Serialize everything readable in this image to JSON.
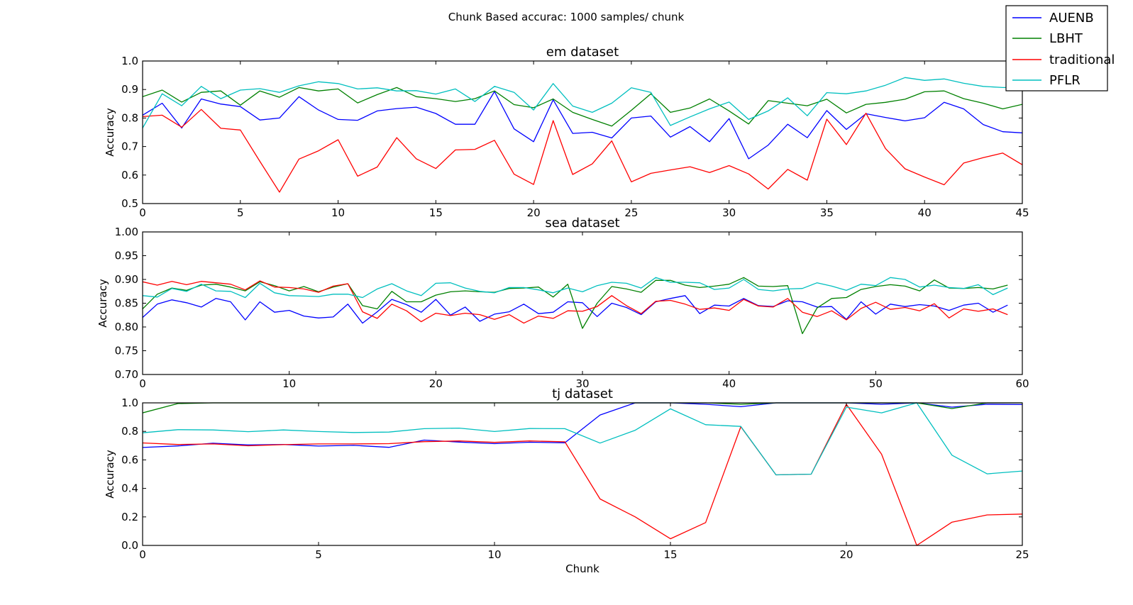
{
  "figure": {
    "suptitle": "Chunk Based accurac: 1000 samples/ chunk",
    "legend": {
      "placement": "top-right",
      "entries": [
        "AUENB",
        "LBHT",
        "traditional",
        "PFLR"
      ]
    },
    "colors": {
      "AUENB": "#0000ff",
      "LBHT": "#008000",
      "traditional": "#ff0000",
      "PFLR": "#00bfbf"
    }
  },
  "chart_data": [
    {
      "type": "line",
      "title": "em dataset",
      "xlabel": "",
      "ylabel": "Accuracy",
      "xlim": [
        0,
        45
      ],
      "ylim": [
        0.5,
        1.0
      ],
      "xticks": [
        "0",
        "5",
        "10",
        "15",
        "20",
        "25",
        "30",
        "35",
        "40",
        "45"
      ],
      "yticks": [
        "0.5",
        "0.6",
        "0.7",
        "0.8",
        "0.9",
        "1.0"
      ],
      "x": [
        0,
        1,
        2,
        3,
        4,
        5,
        6,
        7,
        8,
        9,
        10,
        11,
        12,
        13,
        14,
        15,
        16,
        17,
        18,
        19,
        20,
        21,
        22,
        23,
        24,
        25,
        26,
        27,
        28,
        29,
        30,
        31,
        32,
        33,
        34,
        35,
        36,
        37,
        38,
        39,
        40,
        41,
        42,
        43,
        44,
        45
      ],
      "series": [
        {
          "name": "AUENB",
          "color": "#0000ff",
          "values": [
            0.81,
            0.852,
            0.765,
            0.867,
            0.849,
            0.84,
            0.793,
            0.8,
            0.875,
            0.828,
            0.795,
            0.792,
            0.825,
            0.833,
            0.838,
            0.816,
            0.778,
            0.778,
            0.893,
            0.762,
            0.717,
            0.864,
            0.746,
            0.75,
            0.73,
            0.8,
            0.807,
            0.733,
            0.77,
            0.717,
            0.798,
            0.657,
            0.705,
            0.778,
            0.731,
            0.826,
            0.76,
            0.815,
            0.802,
            0.79,
            0.801,
            0.855,
            0.832,
            0.777,
            0.752,
            0.748
          ]
        },
        {
          "name": "LBHT",
          "color": "#008000",
          "values": [
            0.875,
            0.898,
            0.856,
            0.89,
            0.895,
            0.845,
            0.895,
            0.873,
            0.907,
            0.895,
            0.902,
            0.853,
            0.882,
            0.907,
            0.875,
            0.868,
            0.858,
            0.868,
            0.895,
            0.847,
            0.836,
            0.867,
            0.82,
            0.795,
            0.772,
            0.827,
            0.885,
            0.82,
            0.835,
            0.867,
            0.825,
            0.779,
            0.861,
            0.852,
            0.843,
            0.866,
            0.818,
            0.848,
            0.855,
            0.866,
            0.892,
            0.895,
            0.868,
            0.852,
            0.832,
            0.848
          ]
        },
        {
          "name": "traditional",
          "color": "#ff0000",
          "values": [
            0.805,
            0.81,
            0.768,
            0.83,
            0.764,
            0.758,
            0.648,
            0.54,
            0.656,
            0.685,
            0.724,
            0.596,
            0.628,
            0.731,
            0.657,
            0.623,
            0.688,
            0.69,
            0.722,
            0.603,
            0.567,
            0.791,
            0.602,
            0.639,
            0.72,
            0.576,
            0.606,
            0.618,
            0.629,
            0.609,
            0.633,
            0.604,
            0.551,
            0.62,
            0.582,
            0.796,
            0.707,
            0.817,
            0.693,
            0.622,
            0.593,
            0.566,
            0.642,
            0.661,
            0.677,
            0.636
          ]
        },
        {
          "name": "PFLR",
          "color": "#00bfbf",
          "values": [
            0.765,
            0.885,
            0.843,
            0.911,
            0.868,
            0.898,
            0.903,
            0.89,
            0.913,
            0.927,
            0.921,
            0.902,
            0.906,
            0.895,
            0.896,
            0.884,
            0.902,
            0.858,
            0.911,
            0.89,
            0.828,
            0.921,
            0.842,
            0.82,
            0.852,
            0.906,
            0.89,
            0.774,
            0.804,
            0.832,
            0.856,
            0.795,
            0.825,
            0.871,
            0.808,
            0.889,
            0.885,
            0.895,
            0.915,
            0.942,
            0.932,
            0.937,
            0.922,
            0.911,
            0.907,
            0.907
          ]
        }
      ]
    },
    {
      "type": "line",
      "title": "sea dataset",
      "xlabel": "",
      "ylabel": "Accuracy",
      "xlim": [
        0,
        60
      ],
      "ylim": [
        0.7,
        1.0
      ],
      "xticks": [
        "0",
        "10",
        "20",
        "30",
        "40",
        "50",
        "60"
      ],
      "yticks": [
        "0.70",
        "0.75",
        "0.80",
        "0.85",
        "0.90",
        "0.95",
        "1.00"
      ],
      "x": [
        0,
        1,
        2,
        3,
        4,
        5,
        6,
        7,
        8,
        9,
        10,
        11,
        12,
        13,
        14,
        15,
        16,
        17,
        18,
        19,
        20,
        21,
        22,
        23,
        24,
        25,
        26,
        27,
        28,
        29,
        30,
        31,
        32,
        33,
        34,
        35,
        36,
        37,
        38,
        39,
        40,
        41,
        42,
        43,
        44,
        45,
        46,
        47,
        48,
        49,
        50,
        51,
        52,
        53,
        54,
        55,
        56,
        57,
        58,
        59
      ],
      "series": [
        {
          "name": "AUENB",
          "color": "#0000ff",
          "values": [
            0.82,
            0.848,
            0.857,
            0.851,
            0.842,
            0.86,
            0.853,
            0.815,
            0.853,
            0.831,
            0.835,
            0.823,
            0.819,
            0.821,
            0.848,
            0.808,
            0.832,
            0.858,
            0.847,
            0.831,
            0.858,
            0.825,
            0.842,
            0.812,
            0.827,
            0.832,
            0.848,
            0.828,
            0.831,
            0.853,
            0.851,
            0.822,
            0.85,
            0.841,
            0.826,
            0.853,
            0.86,
            0.866,
            0.828,
            0.846,
            0.844,
            0.86,
            0.845,
            0.843,
            0.855,
            0.853,
            0.842,
            0.843,
            0.816,
            0.853,
            0.827,
            0.848,
            0.843,
            0.847,
            0.844,
            0.835,
            0.846,
            0.85,
            0.831,
            0.846
          ]
        },
        {
          "name": "LBHT",
          "color": "#008000",
          "values": [
            0.838,
            0.869,
            0.882,
            0.877,
            0.888,
            0.89,
            0.884,
            0.876,
            0.895,
            0.887,
            0.876,
            0.885,
            0.874,
            0.884,
            0.891,
            0.845,
            0.838,
            0.875,
            0.853,
            0.853,
            0.867,
            0.874,
            0.876,
            0.874,
            0.873,
            0.881,
            0.882,
            0.884,
            0.863,
            0.89,
            0.797,
            0.85,
            0.885,
            0.88,
            0.873,
            0.898,
            0.898,
            0.888,
            0.883,
            0.886,
            0.89,
            0.904,
            0.886,
            0.885,
            0.887,
            0.786,
            0.84,
            0.86,
            0.862,
            0.879,
            0.885,
            0.889,
            0.886,
            0.876,
            0.899,
            0.882,
            0.881,
            0.883,
            0.88,
            0.888
          ]
        },
        {
          "name": "traditional",
          "color": "#ff0000",
          "values": [
            0.895,
            0.888,
            0.896,
            0.889,
            0.896,
            0.893,
            0.89,
            0.878,
            0.897,
            0.884,
            0.883,
            0.88,
            0.873,
            0.886,
            0.891,
            0.832,
            0.818,
            0.848,
            0.834,
            0.811,
            0.829,
            0.824,
            0.829,
            0.826,
            0.816,
            0.826,
            0.808,
            0.823,
            0.818,
            0.834,
            0.833,
            0.843,
            0.866,
            0.845,
            0.828,
            0.854,
            0.856,
            0.848,
            0.837,
            0.84,
            0.835,
            0.858,
            0.844,
            0.842,
            0.86,
            0.831,
            0.822,
            0.834,
            0.815,
            0.839,
            0.852,
            0.837,
            0.841,
            0.834,
            0.849,
            0.819,
            0.838,
            0.833,
            0.838,
            0.826
          ]
        },
        {
          "name": "PFLR",
          "color": "#00bfbf",
          "values": [
            0.866,
            0.863,
            0.881,
            0.875,
            0.89,
            0.876,
            0.875,
            0.862,
            0.892,
            0.872,
            0.866,
            0.865,
            0.864,
            0.869,
            0.869,
            0.862,
            0.88,
            0.891,
            0.876,
            0.866,
            0.892,
            0.893,
            0.882,
            0.875,
            0.872,
            0.883,
            0.883,
            0.878,
            0.872,
            0.882,
            0.874,
            0.887,
            0.894,
            0.892,
            0.882,
            0.904,
            0.894,
            0.894,
            0.893,
            0.879,
            0.882,
            0.9,
            0.879,
            0.876,
            0.88,
            0.881,
            0.893,
            0.886,
            0.877,
            0.89,
            0.887,
            0.904,
            0.9,
            0.884,
            0.888,
            0.883,
            0.881,
            0.889,
            0.868,
            0.882
          ]
        }
      ]
    },
    {
      "type": "line",
      "title": "tj dataset",
      "xlabel": "Chunk",
      "ylabel": "Accuracy",
      "xlim": [
        0,
        25
      ],
      "ylim": [
        0.0,
        1.0
      ],
      "xticks": [
        "0",
        "5",
        "10",
        "15",
        "20",
        "25"
      ],
      "yticks": [
        "0.0",
        "0.2",
        "0.4",
        "0.6",
        "0.8",
        "1.0"
      ],
      "x": [
        0,
        1,
        2,
        3,
        4,
        5,
        6,
        7,
        8,
        9,
        10,
        11,
        12,
        13,
        14,
        15,
        16,
        17,
        18,
        19,
        20,
        21,
        22,
        23,
        24,
        25
      ],
      "series": [
        {
          "name": "AUENB",
          "color": "#0000ff",
          "values": [
            0.687,
            0.698,
            0.717,
            0.705,
            0.708,
            0.697,
            0.702,
            0.688,
            0.739,
            0.725,
            0.714,
            0.724,
            0.72,
            0.915,
            1.0,
            1.0,
            0.99,
            0.973,
            1.0,
            1.0,
            1.0,
            0.99,
            1.0,
            0.97,
            0.99,
            0.988
          ]
        },
        {
          "name": "LBHT",
          "color": "#008000",
          "values": [
            0.93,
            0.995,
            1.0,
            1.0,
            1.0,
            1.0,
            1.0,
            1.0,
            1.0,
            1.0,
            1.0,
            1.0,
            1.0,
            1.0,
            1.0,
            1.0,
            1.0,
            0.99,
            1.0,
            1.0,
            1.0,
            1.0,
            1.0,
            0.96,
            1.0,
            1.0
          ]
        },
        {
          "name": "traditional",
          "color": "#ff0000",
          "values": [
            0.719,
            0.708,
            0.712,
            0.699,
            0.707,
            0.712,
            0.712,
            0.714,
            0.728,
            0.733,
            0.723,
            0.733,
            0.727,
            0.326,
            0.2,
            0.047,
            0.16,
            0.833,
            0.495,
            0.5,
            0.99,
            0.64,
            0.0,
            0.163,
            0.214,
            0.22
          ]
        },
        {
          "name": "PFLR",
          "color": "#00bfbf",
          "values": [
            0.79,
            0.812,
            0.81,
            0.798,
            0.81,
            0.799,
            0.792,
            0.795,
            0.819,
            0.823,
            0.799,
            0.82,
            0.819,
            0.718,
            0.808,
            0.958,
            0.847,
            0.835,
            0.495,
            0.5,
            0.97,
            0.93,
            1.0,
            0.633,
            0.502,
            0.522
          ]
        }
      ]
    }
  ]
}
